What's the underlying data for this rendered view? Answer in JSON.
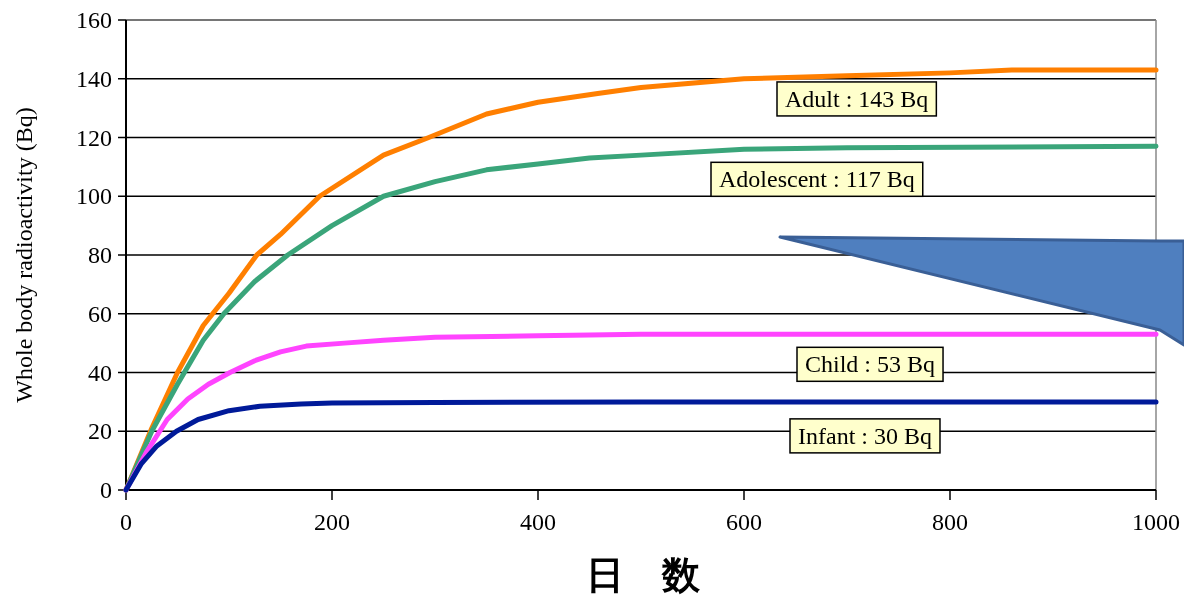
{
  "chart_data": {
    "type": "line",
    "xlabel": "日　数",
    "ylabel": "Whole body radioactivity (Bq)",
    "xlim": [
      0,
      1000
    ],
    "xticks": [
      0,
      200,
      400,
      600,
      800,
      1000
    ],
    "ylim": [
      0,
      160
    ],
    "yticks": [
      0,
      20,
      40,
      60,
      80,
      100,
      120,
      140,
      160
    ],
    "grid": "y",
    "line_style": "solid",
    "marker": "none",
    "series": [
      {
        "color": "#ff7f00",
        "x": [
          0,
          25,
          50,
          75,
          100,
          127,
          150,
          188,
          250,
          294,
          350,
          400,
          458,
          500,
          600,
          700,
          800,
          860,
          1000
        ],
        "values": [
          0,
          21,
          40,
          56,
          67,
          80,
          87,
          100,
          114,
          120,
          128,
          132,
          135,
          137,
          140,
          141,
          142,
          143,
          143
        ]
      },
      {
        "color": "#3aa57a",
        "x": [
          0,
          25,
          50,
          75,
          95,
          125,
          157,
          200,
          250,
          300,
          350,
          400,
          450,
          500,
          600,
          700,
          1000
        ],
        "values": [
          0,
          20,
          36,
          51,
          60,
          71,
          80,
          90,
          100,
          105,
          109,
          111,
          113,
          114,
          116,
          116.5,
          117
        ]
      },
      {
        "color": "#ff44ff",
        "x": [
          0,
          20,
          40,
          60,
          80,
          101,
          125,
          150,
          175,
          212,
          250,
          300,
          400,
          500,
          1000
        ],
        "values": [
          0,
          13,
          24,
          31,
          36,
          40,
          44,
          47,
          49,
          50,
          51,
          52,
          52.5,
          53,
          53
        ]
      },
      {
        "color": "#001a99",
        "x": [
          0,
          15,
          30,
          49,
          70,
          100,
          130,
          170,
          200,
          300,
          500,
          1000
        ],
        "values": [
          0,
          9,
          15,
          20,
          24,
          27,
          28.5,
          29.3,
          29.6,
          29.8,
          30,
          30
        ]
      }
    ],
    "annotations": [
      "Adult : 143 Bq",
      "Adolescent : 117 Bq",
      "Child : 53 Bq",
      "Infant : 30 Bq"
    ]
  }
}
